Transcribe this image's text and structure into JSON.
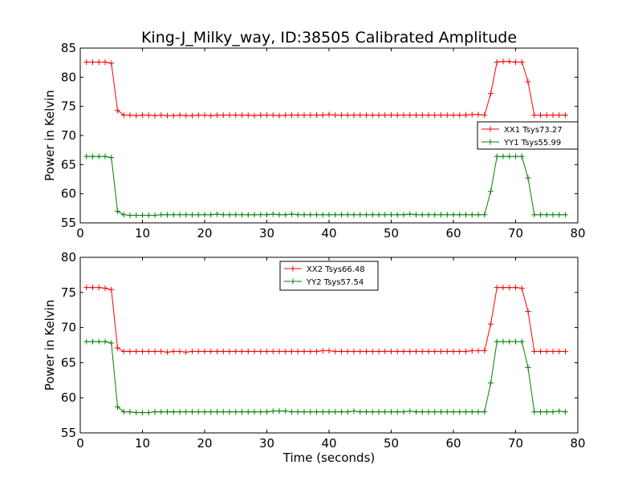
{
  "chart_data": {
    "type": "line",
    "title": "King-J_Milky_way, ID:38505 Calibrated Amplitude",
    "xlabel": "Time (seconds)",
    "colors": {
      "red": "#ff0000",
      "green": "#008000"
    },
    "panels": [
      {
        "ylabel": "Power in Kelvin",
        "xlim": [
          0,
          80
        ],
        "ylim": [
          55,
          85
        ],
        "xticks": [
          "0",
          "10",
          "20",
          "30",
          "40",
          "50",
          "60",
          "70",
          "80"
        ],
        "yticks": [
          "55",
          "60",
          "65",
          "70",
          "75",
          "80",
          "85"
        ],
        "legend_position": "center-right",
        "x": [
          1,
          2,
          3,
          4,
          5,
          6,
          7,
          8,
          9,
          10,
          11,
          12,
          13,
          14,
          15,
          16,
          17,
          18,
          19,
          20,
          21,
          22,
          23,
          24,
          25,
          26,
          27,
          28,
          29,
          30,
          31,
          32,
          33,
          34,
          35,
          36,
          37,
          38,
          39,
          40,
          41,
          42,
          43,
          44,
          45,
          46,
          47,
          48,
          49,
          50,
          51,
          52,
          53,
          54,
          55,
          56,
          57,
          58,
          59,
          60,
          61,
          62,
          63,
          64,
          65,
          66,
          67,
          68,
          69,
          70,
          71,
          72,
          73,
          74,
          75,
          76,
          77,
          78
        ],
        "series": [
          {
            "name": "XX1 Tsys73.27",
            "color": "red",
            "values": [
              82.6,
              82.6,
              82.6,
              82.6,
              82.4,
              74.3,
              73.5,
              73.5,
              73.4,
              73.5,
              73.5,
              73.4,
              73.5,
              73.4,
              73.4,
              73.5,
              73.4,
              73.4,
              73.5,
              73.5,
              73.4,
              73.5,
              73.5,
              73.5,
              73.5,
              73.5,
              73.5,
              73.4,
              73.5,
              73.5,
              73.5,
              73.4,
              73.5,
              73.5,
              73.5,
              73.5,
              73.5,
              73.5,
              73.5,
              73.6,
              73.5,
              73.5,
              73.5,
              73.5,
              73.5,
              73.5,
              73.5,
              73.5,
              73.5,
              73.5,
              73.5,
              73.5,
              73.5,
              73.5,
              73.5,
              73.5,
              73.5,
              73.5,
              73.5,
              73.5,
              73.5,
              73.5,
              73.6,
              73.6,
              73.5,
              77.2,
              82.6,
              82.7,
              82.7,
              82.6,
              82.6,
              79.2,
              73.5,
              73.5,
              73.5,
              73.5,
              73.5,
              73.5
            ]
          },
          {
            "name": "YY1 Tsys55.99",
            "color": "green",
            "values": [
              66.4,
              66.4,
              66.4,
              66.4,
              66.2,
              57.0,
              56.4,
              56.3,
              56.3,
              56.3,
              56.3,
              56.3,
              56.4,
              56.4,
              56.4,
              56.4,
              56.4,
              56.4,
              56.4,
              56.4,
              56.4,
              56.5,
              56.4,
              56.4,
              56.4,
              56.4,
              56.4,
              56.4,
              56.4,
              56.4,
              56.5,
              56.4,
              56.4,
              56.5,
              56.4,
              56.4,
              56.4,
              56.4,
              56.4,
              56.4,
              56.4,
              56.4,
              56.4,
              56.4,
              56.4,
              56.4,
              56.4,
              56.4,
              56.4,
              56.4,
              56.4,
              56.4,
              56.5,
              56.4,
              56.4,
              56.4,
              56.4,
              56.4,
              56.4,
              56.4,
              56.4,
              56.4,
              56.4,
              56.4,
              56.4,
              60.4,
              66.4,
              66.4,
              66.4,
              66.4,
              66.4,
              62.7,
              56.4,
              56.4,
              56.4,
              56.4,
              56.4,
              56.4
            ]
          }
        ]
      },
      {
        "ylabel": "Power in Kelvin",
        "xlim": [
          0,
          80
        ],
        "ylim": [
          55,
          80
        ],
        "xticks": [
          "0",
          "10",
          "20",
          "30",
          "40",
          "50",
          "60",
          "70",
          "80"
        ],
        "yticks": [
          "55",
          "60",
          "65",
          "70",
          "75",
          "80"
        ],
        "legend_position": "upper-center",
        "x": [
          1,
          2,
          3,
          4,
          5,
          6,
          7,
          8,
          9,
          10,
          11,
          12,
          13,
          14,
          15,
          16,
          17,
          18,
          19,
          20,
          21,
          22,
          23,
          24,
          25,
          26,
          27,
          28,
          29,
          30,
          31,
          32,
          33,
          34,
          35,
          36,
          37,
          38,
          39,
          40,
          41,
          42,
          43,
          44,
          45,
          46,
          47,
          48,
          49,
          50,
          51,
          52,
          53,
          54,
          55,
          56,
          57,
          58,
          59,
          60,
          61,
          62,
          63,
          64,
          65,
          66,
          67,
          68,
          69,
          70,
          71,
          72,
          73,
          74,
          75,
          76,
          77,
          78
        ],
        "series": [
          {
            "name": "XX2 Tsys66.48",
            "color": "red",
            "values": [
              75.7,
              75.7,
              75.7,
              75.6,
              75.4,
              67.1,
              66.6,
              66.6,
              66.6,
              66.6,
              66.6,
              66.6,
              66.6,
              66.5,
              66.6,
              66.6,
              66.5,
              66.6,
              66.6,
              66.6,
              66.6,
              66.6,
              66.6,
              66.6,
              66.6,
              66.6,
              66.6,
              66.6,
              66.6,
              66.6,
              66.6,
              66.6,
              66.6,
              66.6,
              66.6,
              66.6,
              66.6,
              66.6,
              66.7,
              66.7,
              66.6,
              66.6,
              66.6,
              66.6,
              66.6,
              66.6,
              66.6,
              66.6,
              66.6,
              66.6,
              66.6,
              66.6,
              66.6,
              66.6,
              66.6,
              66.6,
              66.6,
              66.6,
              66.6,
              66.6,
              66.6,
              66.6,
              66.7,
              66.7,
              66.7,
              70.5,
              75.7,
              75.7,
              75.7,
              75.7,
              75.6,
              72.3,
              66.6,
              66.6,
              66.6,
              66.6,
              66.6,
              66.6
            ]
          },
          {
            "name": "YY2 Tsys57.54",
            "color": "green",
            "values": [
              68.0,
              68.0,
              68.0,
              68.0,
              67.8,
              58.7,
              58.0,
              58.0,
              57.9,
              57.9,
              57.9,
              58.0,
              58.0,
              58.0,
              58.0,
              58.0,
              58.0,
              58.0,
              58.0,
              58.0,
              58.0,
              58.0,
              58.0,
              58.0,
              58.0,
              58.0,
              58.0,
              58.0,
              58.0,
              58.0,
              58.1,
              58.1,
              58.1,
              58.0,
              58.0,
              58.0,
              58.0,
              58.0,
              58.0,
              58.0,
              58.0,
              58.0,
              58.0,
              58.1,
              58.0,
              58.0,
              58.0,
              58.0,
              58.0,
              58.0,
              58.0,
              58.0,
              58.1,
              58.0,
              58.0,
              58.0,
              58.0,
              58.0,
              58.0,
              58.0,
              58.0,
              58.0,
              58.0,
              58.0,
              58.0,
              62.1,
              68.0,
              68.0,
              68.0,
              68.0,
              68.0,
              64.3,
              58.0,
              58.0,
              58.0,
              58.0,
              58.1,
              58.0
            ]
          }
        ]
      }
    ]
  }
}
